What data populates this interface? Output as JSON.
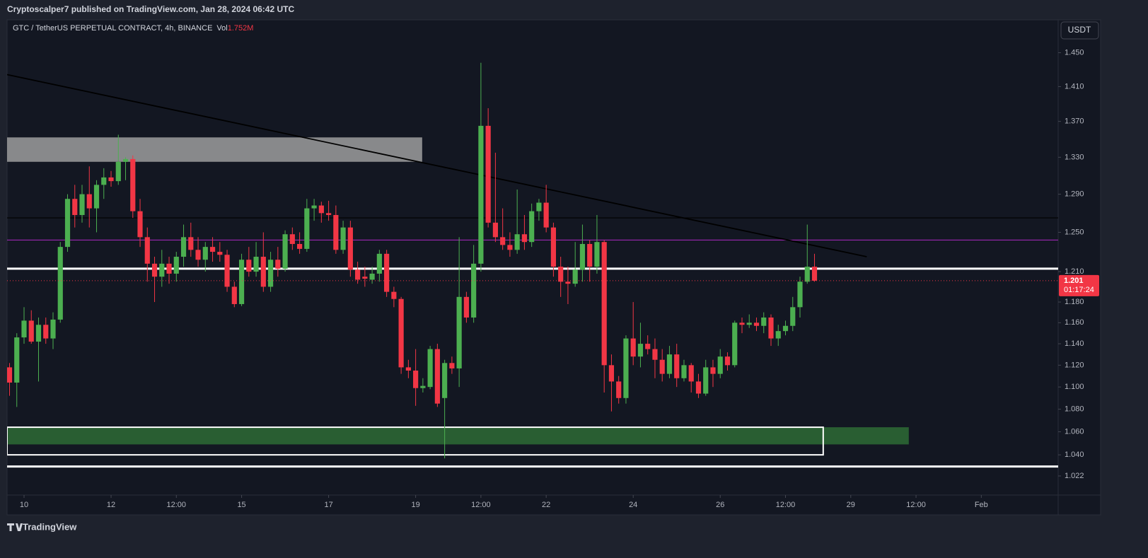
{
  "chart_data": {
    "type": "candlestick",
    "header": "Cryptoscalper7 published on TradingView.com, Jan 28, 2024 06:42 UTC",
    "volume_label": "Vol",
    "volume": "1.752M",
    "currency": "USDT",
    "footer": "TradingView",
    "log_scale": true,
    "last_price": 1.201,
    "countdown": "01:17:24",
    "series": [
      {
        "name": "GTC / TetherUS PERPETUAL CONTRACT, 4h, BINANCE",
        "up_color": "#4caf50",
        "down_color": "#f23645",
        "ohlc": [
          [
            1.118,
            1.122,
            1.092,
            1.104
          ],
          [
            1.104,
            1.15,
            1.082,
            1.146
          ],
          [
            1.146,
            1.175,
            1.14,
            1.162
          ],
          [
            1.162,
            1.172,
            1.14,
            1.142
          ],
          [
            1.142,
            1.165,
            1.105,
            1.158
          ],
          [
            1.158,
            1.165,
            1.14,
            1.145
          ],
          [
            1.145,
            1.17,
            1.135,
            1.163
          ],
          [
            1.163,
            1.24,
            1.16,
            1.235
          ],
          [
            1.235,
            1.29,
            1.23,
            1.285
          ],
          [
            1.285,
            1.3,
            1.255,
            1.268
          ],
          [
            1.268,
            1.3,
            1.26,
            1.29
          ],
          [
            1.29,
            1.32,
            1.255,
            1.275
          ],
          [
            1.275,
            1.305,
            1.25,
            1.3
          ],
          [
            1.3,
            1.318,
            1.285,
            1.308
          ],
          [
            1.308,
            1.315,
            1.298,
            1.304
          ],
          [
            1.304,
            1.355,
            1.3,
            1.325
          ],
          [
            1.325,
            1.33,
            1.305,
            1.328
          ],
          [
            1.328,
            1.332,
            1.265,
            1.272
          ],
          [
            1.272,
            1.285,
            1.235,
            1.245
          ],
          [
            1.245,
            1.255,
            1.2,
            1.218
          ],
          [
            1.218,
            1.225,
            1.18,
            1.205
          ],
          [
            1.205,
            1.232,
            1.195,
            1.218
          ],
          [
            1.218,
            1.225,
            1.198,
            1.208
          ],
          [
            1.208,
            1.23,
            1.2,
            1.225
          ],
          [
            1.225,
            1.258,
            1.215,
            1.245
          ],
          [
            1.245,
            1.26,
            1.225,
            1.232
          ],
          [
            1.232,
            1.245,
            1.215,
            1.222
          ],
          [
            1.222,
            1.24,
            1.21,
            1.235
          ],
          [
            1.235,
            1.245,
            1.22,
            1.23
          ],
          [
            1.23,
            1.24,
            1.22,
            1.227
          ],
          [
            1.227,
            1.232,
            1.19,
            1.195
          ],
          [
            1.195,
            1.2,
            1.175,
            1.178
          ],
          [
            1.178,
            1.228,
            1.176,
            1.222
          ],
          [
            1.222,
            1.235,
            1.205,
            1.21
          ],
          [
            1.21,
            1.24,
            1.205,
            1.225
          ],
          [
            1.225,
            1.25,
            1.19,
            1.195
          ],
          [
            1.195,
            1.23,
            1.19,
            1.222
          ],
          [
            1.222,
            1.235,
            1.205,
            1.213
          ],
          [
            1.213,
            1.252,
            1.21,
            1.248
          ],
          [
            1.248,
            1.255,
            1.232,
            1.238
          ],
          [
            1.238,
            1.25,
            1.228,
            1.233
          ],
          [
            1.233,
            1.285,
            1.23,
            1.275
          ],
          [
            1.275,
            1.285,
            1.262,
            1.278
          ],
          [
            1.278,
            1.282,
            1.26,
            1.27
          ],
          [
            1.27,
            1.283,
            1.262,
            1.268
          ],
          [
            1.268,
            1.278,
            1.228,
            1.232
          ],
          [
            1.232,
            1.262,
            1.228,
            1.255
          ],
          [
            1.255,
            1.262,
            1.205,
            1.212
          ],
          [
            1.212,
            1.22,
            1.198,
            1.202
          ],
          [
            1.205,
            1.215,
            1.195,
            1.203
          ],
          [
            1.202,
            1.215,
            1.198,
            1.208
          ],
          [
            1.208,
            1.232,
            1.2,
            1.228
          ],
          [
            1.228,
            1.232,
            1.185,
            1.19
          ],
          [
            1.19,
            1.195,
            1.175,
            1.183
          ],
          [
            1.183,
            1.185,
            1.112,
            1.118
          ],
          [
            1.118,
            1.125,
            1.108,
            1.115
          ],
          [
            1.115,
            1.135,
            1.083,
            1.099
          ],
          [
            1.099,
            1.108,
            1.095,
            1.101
          ],
          [
            1.1,
            1.138,
            1.098,
            1.135
          ],
          [
            1.135,
            1.14,
            1.082,
            1.085
          ],
          [
            1.09,
            1.125,
            1.037,
            1.122
          ],
          [
            1.122,
            1.128,
            1.112,
            1.117
          ],
          [
            1.117,
            1.245,
            1.1,
            1.185
          ],
          [
            1.185,
            1.19,
            1.16,
            1.165
          ],
          [
            1.165,
            1.237,
            1.16,
            1.218
          ],
          [
            1.218,
            1.438,
            1.21,
            1.365
          ],
          [
            1.365,
            1.385,
            1.255,
            1.26
          ],
          [
            1.26,
            1.335,
            1.24,
            1.245
          ],
          [
            1.245,
            1.275,
            1.232,
            1.237
          ],
          [
            1.237,
            1.25,
            1.225,
            1.232
          ],
          [
            1.232,
            1.295,
            1.228,
            1.248
          ],
          [
            1.248,
            1.268,
            1.232,
            1.24
          ],
          [
            1.24,
            1.28,
            1.235,
            1.272
          ],
          [
            1.272,
            1.285,
            1.262,
            1.281
          ],
          [
            1.281,
            1.3,
            1.25,
            1.255
          ],
          [
            1.255,
            1.26,
            1.205,
            1.215
          ],
          [
            1.215,
            1.225,
            1.185,
            1.2
          ],
          [
            1.2,
            1.215,
            1.178,
            1.198
          ],
          [
            1.198,
            1.24,
            1.195,
            1.212
          ],
          [
            1.212,
            1.258,
            1.2,
            1.238
          ],
          [
            1.238,
            1.242,
            1.2,
            1.215
          ],
          [
            1.215,
            1.268,
            1.208,
            1.24
          ],
          [
            1.24,
            1.242,
            1.095,
            1.12
          ],
          [
            1.12,
            1.13,
            1.078,
            1.105
          ],
          [
            1.105,
            1.11,
            1.085,
            1.09
          ],
          [
            1.09,
            1.148,
            1.085,
            1.145
          ],
          [
            1.145,
            1.18,
            1.12,
            1.128
          ],
          [
            1.128,
            1.16,
            1.118,
            1.14
          ],
          [
            1.14,
            1.148,
            1.13,
            1.135
          ],
          [
            1.135,
            1.145,
            1.108,
            1.125
          ],
          [
            1.125,
            1.135,
            1.105,
            1.112
          ],
          [
            1.112,
            1.138,
            1.108,
            1.13
          ],
          [
            1.13,
            1.14,
            1.1,
            1.108
          ],
          [
            1.108,
            1.125,
            1.105,
            1.12
          ],
          [
            1.12,
            1.122,
            1.095,
            1.105
          ],
          [
            1.105,
            1.112,
            1.09,
            1.094
          ],
          [
            1.094,
            1.125,
            1.092,
            1.118
          ],
          [
            1.118,
            1.125,
            1.1,
            1.112
          ],
          [
            1.112,
            1.135,
            1.108,
            1.128
          ],
          [
            1.128,
            1.132,
            1.115,
            1.12
          ],
          [
            1.12,
            1.162,
            1.118,
            1.16
          ],
          [
            1.16,
            1.165,
            1.15,
            1.158
          ],
          [
            1.158,
            1.168,
            1.155,
            1.16
          ],
          [
            1.16,
            1.165,
            1.152,
            1.157
          ],
          [
            1.157,
            1.17,
            1.15,
            1.165
          ],
          [
            1.165,
            1.168,
            1.138,
            1.145
          ],
          [
            1.145,
            1.158,
            1.138,
            1.152
          ],
          [
            1.152,
            1.162,
            1.148,
            1.157
          ],
          [
            1.157,
            1.185,
            1.152,
            1.175
          ],
          [
            1.175,
            1.205,
            1.165,
            1.2
          ],
          [
            1.2,
            1.258,
            1.198,
            1.215
          ],
          [
            1.215,
            1.228,
            1.2,
            1.201
          ]
        ]
      }
    ],
    "xlim": [
      -0.34,
      144.6
    ],
    "xticks": [
      {
        "value": 2,
        "label": "10"
      },
      {
        "value": 14,
        "label": "12"
      },
      {
        "value": 23,
        "label": "12:00"
      },
      {
        "value": 32,
        "label": "15"
      },
      {
        "value": 44,
        "label": "17"
      },
      {
        "value": 56,
        "label": "19"
      },
      {
        "value": 65,
        "label": "12:00"
      },
      {
        "value": 74,
        "label": "22"
      },
      {
        "value": 86,
        "label": "24"
      },
      {
        "value": 98,
        "label": "26"
      },
      {
        "value": 107,
        "label": "12:00"
      },
      {
        "value": 116,
        "label": "29"
      },
      {
        "value": 125,
        "label": "12:00"
      },
      {
        "value": 134,
        "label": "Feb"
      }
    ],
    "ylim": [
      1.006,
      1.49
    ],
    "yticks": [
      {
        "value": 1.45,
        "label": "1.450"
      },
      {
        "value": 1.41,
        "label": "1.410"
      },
      {
        "value": 1.37,
        "label": "1.370"
      },
      {
        "value": 1.33,
        "label": "1.330"
      },
      {
        "value": 1.29,
        "label": "1.290"
      },
      {
        "value": 1.25,
        "label": "1.250"
      },
      {
        "value": 1.21,
        "label": "1.210"
      },
      {
        "value": 1.18,
        "label": "1.180"
      },
      {
        "value": 1.16,
        "label": "1.160"
      },
      {
        "value": 1.14,
        "label": "1.140"
      },
      {
        "value": 1.12,
        "label": "1.120"
      },
      {
        "value": 1.1,
        "label": "1.100"
      },
      {
        "value": 1.08,
        "label": "1.080"
      },
      {
        "value": 1.06,
        "label": "1.060"
      },
      {
        "value": 1.04,
        "label": "1.040"
      },
      {
        "value": 1.022,
        "label": "1.022"
      }
    ],
    "drawings": [
      {
        "kind": "rect",
        "price": [
          1.325,
          1.352
        ],
        "x": [
          -0.34,
          56.9
        ],
        "color": "#9e9e9e"
      },
      {
        "kind": "rect",
        "price": [
          1.049,
          1.064
        ],
        "x": [
          -0.34,
          124
        ],
        "color": "#2e6b35"
      },
      {
        "kind": "box",
        "price": [
          1.04,
          1.064
        ],
        "x": [
          -0.34,
          112.2
        ],
        "color": "#ffffff"
      },
      {
        "kind": "hline",
        "price": [
          1.213
        ],
        "color": "#ffffff"
      },
      {
        "kind": "hline",
        "price": [
          1.03
        ],
        "color": "#ffffff"
      },
      {
        "kind": "hline",
        "price": [
          1.265
        ],
        "color": "#000000"
      },
      {
        "kind": "hline",
        "price": [
          1.242
        ],
        "color": "#9c27b0"
      },
      {
        "kind": "trend",
        "price": [
          1.424,
          1.225
        ],
        "x": [
          -0.34,
          118.2
        ],
        "color": "#000000"
      }
    ]
  }
}
